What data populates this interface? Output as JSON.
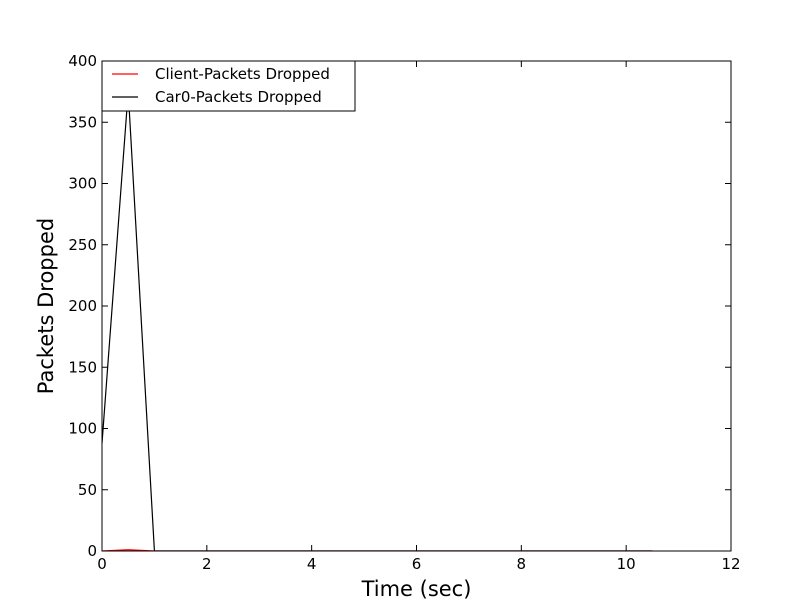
{
  "chart_data": {
    "type": "line",
    "xlabel": "Time (sec)",
    "ylabel": "Packets Dropped",
    "xlim": [
      0,
      12
    ],
    "ylim": [
      0,
      400
    ],
    "xticks": [
      0,
      2,
      4,
      6,
      8,
      10,
      12
    ],
    "yticks": [
      0,
      50,
      100,
      150,
      200,
      250,
      300,
      350,
      400
    ],
    "grid": false,
    "legend": "top-left",
    "series": [
      {
        "name": "Client-Packets Dropped",
        "color": "#ff0000",
        "x": [
          0,
          0.5,
          1.0,
          1.5,
          2.0,
          2.5,
          3.0,
          3.5,
          4.0,
          4.5,
          5.0,
          5.5,
          6.0,
          6.5,
          7.0,
          7.5,
          8.0,
          8.5,
          9.0,
          9.5,
          10.0,
          10.5
        ],
        "y": [
          0,
          1,
          0,
          0,
          0,
          0,
          0,
          0,
          0,
          0,
          0,
          0,
          0,
          0,
          0,
          0,
          0,
          0,
          0,
          0,
          0,
          0
        ]
      },
      {
        "name": "Car0-Packets Dropped",
        "color": "#000000",
        "x": [
          0,
          0.5,
          1.0,
          1.5,
          2.0,
          2.5,
          3.0,
          3.5,
          4.0,
          4.5,
          5.0,
          5.5,
          6.0,
          6.5,
          7.0,
          7.5,
          8.0,
          8.5,
          9.0,
          9.5,
          10.0,
          10.5
        ],
        "y": [
          88,
          375,
          0,
          0,
          0,
          0,
          0,
          0,
          0,
          0,
          0,
          0,
          0,
          0,
          0,
          0,
          0,
          0,
          0,
          0,
          0,
          0
        ]
      }
    ]
  }
}
